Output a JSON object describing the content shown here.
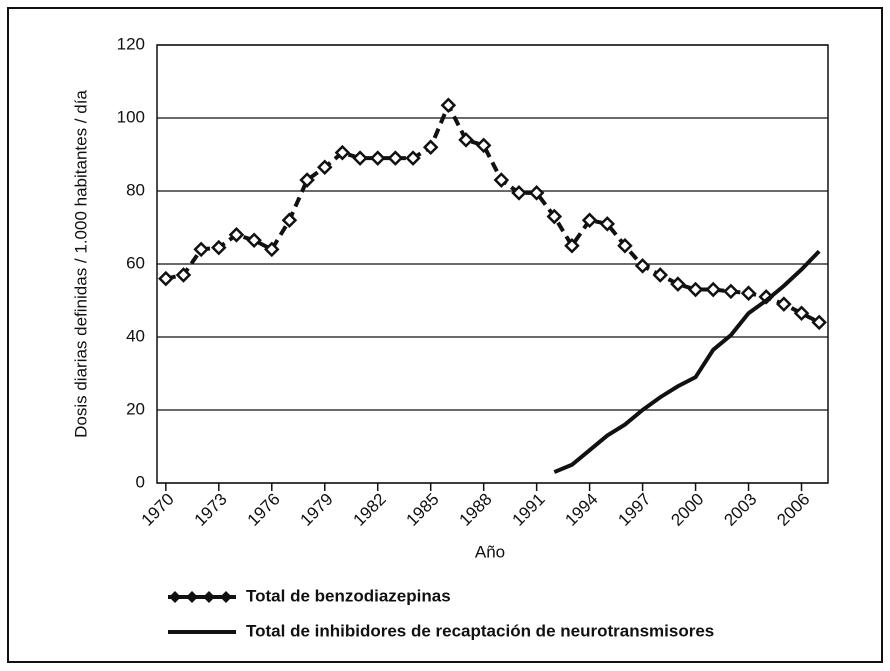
{
  "chart_data": {
    "type": "line",
    "x_label": "Año",
    "y_label": "Dosis diarias definidas / 1.000 habitantes / día",
    "xlim": [
      1969.5,
      2007.5
    ],
    "xticks": [
      1970,
      1973,
      1976,
      1979,
      1982,
      1985,
      1988,
      1991,
      1994,
      1997,
      2000,
      2003,
      2006
    ],
    "ylim": [
      0,
      120
    ],
    "yticks": [
      0,
      20,
      40,
      60,
      80,
      100,
      120
    ],
    "grid": true,
    "legend": "bottom",
    "series": [
      {
        "name": "Total de benzodiazepinas",
        "color": "#111111",
        "style": "dashed",
        "marker": "diamond",
        "x": [
          1970,
          1971,
          1972,
          1973,
          1974,
          1975,
          1976,
          1977,
          1978,
          1979,
          1980,
          1981,
          1982,
          1983,
          1984,
          1985,
          1986,
          1987,
          1988,
          1989,
          1990,
          1991,
          1992,
          1993,
          1994,
          1995,
          1996,
          1997,
          1998,
          1999,
          2000,
          2001,
          2002,
          2003,
          2004,
          2005,
          2006,
          2007
        ],
        "values": [
          56,
          57,
          64,
          64.5,
          68,
          66.5,
          64,
          72,
          83,
          86.5,
          90.5,
          89,
          89,
          89,
          89,
          92,
          103.5,
          94,
          92.5,
          83,
          79.5,
          79.5,
          73,
          65,
          72,
          71,
          65,
          59.5,
          57,
          54.5,
          53,
          53,
          52.5,
          52,
          51,
          49,
          46.5,
          44
        ]
      },
      {
        "name": "Total de inhibidores de recaptación de neurotransmisores",
        "color": "#111111",
        "style": "solid",
        "x": [
          1992,
          1993,
          1994,
          1995,
          1996,
          1997,
          1998,
          1999,
          2000,
          2001,
          2002,
          2003,
          2004,
          2005,
          2006,
          2007
        ],
        "values": [
          3,
          5,
          9,
          13,
          16,
          20,
          23.5,
          26.5,
          29,
          36.5,
          40.5,
          46.5,
          50,
          54,
          58.5,
          63.5
        ]
      }
    ]
  }
}
